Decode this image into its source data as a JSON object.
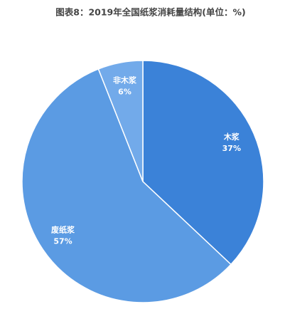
{
  "chart_data": {
    "type": "pie",
    "title": "图表8：2019年全国纸浆消耗量结构(单位：%)",
    "categories": [
      "木浆",
      "废纸浆",
      "非木浆"
    ],
    "values": [
      37,
      57,
      6
    ],
    "value_labels": [
      "37%",
      "57%",
      "6%"
    ],
    "colors": [
      "#3b82d8",
      "#5b9be3",
      "#72aaea"
    ]
  }
}
